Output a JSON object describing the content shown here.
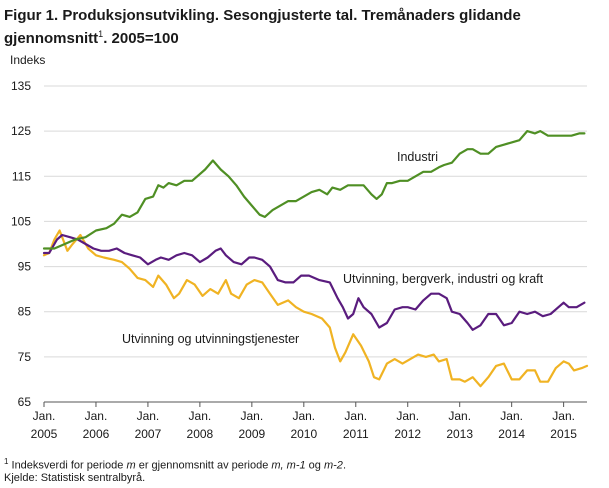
{
  "title": {
    "line1": "Figur 1. Produksjonsutvikling. Sesongjusterte tal. Tremånaders glidande",
    "line2_pre": "gjennomsnitt",
    "line2_sup": "1",
    "line2_post": ". 2005=100"
  },
  "footnotes": {
    "sup": "1",
    "note_pre": " Indeksverdi for periode ",
    "note_m1": "m",
    "note_mid": " er gjennomsnitt av periode ",
    "note_m2": "m, m-1",
    "note_og": " og ",
    "note_m3": "m-2",
    "note_end": ".",
    "source": "Kjelde: Statistisk sentralbyrå."
  },
  "chart_data": {
    "type": "line",
    "ylabel": "Indeks",
    "ylim": [
      65,
      135
    ],
    "yticks": [
      65,
      75,
      85,
      95,
      105,
      115,
      125,
      135
    ],
    "grid": true,
    "x_start_year": 2005,
    "x_end_year": 2015.45,
    "xticks": [
      {
        "month": "Jan.",
        "year": "2005"
      },
      {
        "month": "Jan.",
        "year": "2006"
      },
      {
        "month": "Jan.",
        "year": "2007"
      },
      {
        "month": "Jan.",
        "year": "2008"
      },
      {
        "month": "Jan.",
        "year": "2009"
      },
      {
        "month": "Jan.",
        "year": "2010"
      },
      {
        "month": "Jan.",
        "year": "2011"
      },
      {
        "month": "Jan.",
        "year": "2012"
      },
      {
        "month": "Jan.",
        "year": "2013"
      },
      {
        "month": "Jan.",
        "year": "2014"
      },
      {
        "month": "Jan.",
        "year": "2015"
      }
    ],
    "series": [
      {
        "name": "Industri",
        "color": "#4f8f24",
        "points": [
          [
            2005.0,
            99
          ],
          [
            2005.2,
            99
          ],
          [
            2005.4,
            100
          ],
          [
            2005.6,
            101
          ],
          [
            2005.8,
            101.5
          ],
          [
            2006.0,
            103
          ],
          [
            2006.2,
            103.5
          ],
          [
            2006.35,
            104.5
          ],
          [
            2006.5,
            106.5
          ],
          [
            2006.65,
            106
          ],
          [
            2006.8,
            107
          ],
          [
            2006.95,
            110
          ],
          [
            2007.1,
            110.5
          ],
          [
            2007.2,
            113
          ],
          [
            2007.3,
            112.5
          ],
          [
            2007.4,
            113.5
          ],
          [
            2007.55,
            113
          ],
          [
            2007.7,
            114
          ],
          [
            2007.85,
            114
          ],
          [
            2007.95,
            115
          ],
          [
            2008.1,
            116.5
          ],
          [
            2008.25,
            118.5
          ],
          [
            2008.4,
            116.5
          ],
          [
            2008.55,
            115
          ],
          [
            2008.7,
            113
          ],
          [
            2008.85,
            110.5
          ],
          [
            2009.0,
            108.5
          ],
          [
            2009.15,
            106.5
          ],
          [
            2009.25,
            106
          ],
          [
            2009.4,
            107.5
          ],
          [
            2009.55,
            108.5
          ],
          [
            2009.7,
            109.5
          ],
          [
            2009.85,
            109.5
          ],
          [
            2010.0,
            110.5
          ],
          [
            2010.15,
            111.5
          ],
          [
            2010.3,
            112
          ],
          [
            2010.45,
            111
          ],
          [
            2010.55,
            112.5
          ],
          [
            2010.7,
            112
          ],
          [
            2010.85,
            113
          ],
          [
            2011.0,
            113
          ],
          [
            2011.15,
            113
          ],
          [
            2011.3,
            111
          ],
          [
            2011.4,
            110
          ],
          [
            2011.5,
            111
          ],
          [
            2011.6,
            113.5
          ],
          [
            2011.7,
            113.5
          ],
          [
            2011.85,
            114
          ],
          [
            2012.0,
            114
          ],
          [
            2012.15,
            115
          ],
          [
            2012.3,
            116
          ],
          [
            2012.45,
            116
          ],
          [
            2012.6,
            117
          ],
          [
            2012.7,
            117.5
          ],
          [
            2012.85,
            118
          ],
          [
            2013.0,
            120
          ],
          [
            2013.15,
            121
          ],
          [
            2013.25,
            121
          ],
          [
            2013.4,
            120
          ],
          [
            2013.55,
            120
          ],
          [
            2013.7,
            121.5
          ],
          [
            2013.85,
            122
          ],
          [
            2014.0,
            122.5
          ],
          [
            2014.15,
            123
          ],
          [
            2014.3,
            125
          ],
          [
            2014.45,
            124.5
          ],
          [
            2014.55,
            125
          ],
          [
            2014.7,
            124
          ],
          [
            2014.85,
            124
          ],
          [
            2015.0,
            124
          ],
          [
            2015.15,
            124
          ],
          [
            2015.3,
            124.5
          ],
          [
            2015.4,
            124.5
          ]
        ]
      },
      {
        "name": "Utvinning, bergverk, industri og kraft",
        "color": "#5a1c7e",
        "points": [
          [
            2005.0,
            98
          ],
          [
            2005.1,
            98
          ],
          [
            2005.25,
            101
          ],
          [
            2005.35,
            102
          ],
          [
            2005.5,
            101.5
          ],
          [
            2005.65,
            101
          ],
          [
            2005.8,
            100
          ],
          [
            2005.95,
            99
          ],
          [
            2006.1,
            98.5
          ],
          [
            2006.25,
            98.5
          ],
          [
            2006.4,
            99
          ],
          [
            2006.55,
            98
          ],
          [
            2006.7,
            97.5
          ],
          [
            2006.85,
            97
          ],
          [
            2007.0,
            95.5
          ],
          [
            2007.15,
            96.5
          ],
          [
            2007.25,
            97
          ],
          [
            2007.4,
            96.5
          ],
          [
            2007.55,
            97.5
          ],
          [
            2007.7,
            98
          ],
          [
            2007.85,
            97.5
          ],
          [
            2008.0,
            96
          ],
          [
            2008.15,
            97
          ],
          [
            2008.3,
            98.5
          ],
          [
            2008.4,
            99
          ],
          [
            2008.5,
            97.5
          ],
          [
            2008.65,
            96
          ],
          [
            2008.8,
            95.5
          ],
          [
            2008.95,
            97
          ],
          [
            2009.05,
            97
          ],
          [
            2009.2,
            96.5
          ],
          [
            2009.35,
            95
          ],
          [
            2009.5,
            92
          ],
          [
            2009.65,
            91.5
          ],
          [
            2009.8,
            91.5
          ],
          [
            2009.95,
            93
          ],
          [
            2010.1,
            93
          ],
          [
            2010.3,
            92
          ],
          [
            2010.5,
            91.5
          ],
          [
            2010.65,
            88
          ],
          [
            2010.75,
            86
          ],
          [
            2010.85,
            83.5
          ],
          [
            2010.95,
            84.5
          ],
          [
            2011.05,
            88
          ],
          [
            2011.15,
            86
          ],
          [
            2011.3,
            84.5
          ],
          [
            2011.45,
            81.5
          ],
          [
            2011.6,
            82.5
          ],
          [
            2011.75,
            85.5
          ],
          [
            2011.9,
            86
          ],
          [
            2012.0,
            86
          ],
          [
            2012.15,
            85.5
          ],
          [
            2012.3,
            87.5
          ],
          [
            2012.45,
            89
          ],
          [
            2012.6,
            89
          ],
          [
            2012.75,
            88
          ],
          [
            2012.85,
            85
          ],
          [
            2013.0,
            84.5
          ],
          [
            2013.15,
            82.5
          ],
          [
            2013.25,
            81
          ],
          [
            2013.4,
            82
          ],
          [
            2013.55,
            84.5
          ],
          [
            2013.7,
            84.5
          ],
          [
            2013.85,
            82
          ],
          [
            2014.0,
            82.5
          ],
          [
            2014.15,
            85
          ],
          [
            2014.3,
            84.5
          ],
          [
            2014.45,
            85
          ],
          [
            2014.6,
            84
          ],
          [
            2014.75,
            84.5
          ],
          [
            2014.9,
            86
          ],
          [
            2015.0,
            87
          ],
          [
            2015.1,
            86
          ],
          [
            2015.25,
            86
          ],
          [
            2015.4,
            87
          ]
        ]
      },
      {
        "name": "Utvinning og utvinningstjenester",
        "color": "#f0b323",
        "points": [
          [
            2005.0,
            97.5
          ],
          [
            2005.1,
            98
          ],
          [
            2005.2,
            101
          ],
          [
            2005.3,
            103
          ],
          [
            2005.45,
            98.5
          ],
          [
            2005.55,
            100
          ],
          [
            2005.7,
            102
          ],
          [
            2005.85,
            99
          ],
          [
            2006.0,
            97.5
          ],
          [
            2006.15,
            97
          ],
          [
            2006.35,
            96.5
          ],
          [
            2006.5,
            96
          ],
          [
            2006.65,
            94.5
          ],
          [
            2006.8,
            92.5
          ],
          [
            2006.95,
            92
          ],
          [
            2007.1,
            90.5
          ],
          [
            2007.2,
            93
          ],
          [
            2007.35,
            91
          ],
          [
            2007.5,
            88
          ],
          [
            2007.6,
            89
          ],
          [
            2007.75,
            92
          ],
          [
            2007.9,
            91
          ],
          [
            2008.05,
            88.5
          ],
          [
            2008.2,
            90
          ],
          [
            2008.35,
            89
          ],
          [
            2008.5,
            92
          ],
          [
            2008.6,
            89
          ],
          [
            2008.75,
            88
          ],
          [
            2008.9,
            91
          ],
          [
            2009.05,
            92
          ],
          [
            2009.2,
            91.5
          ],
          [
            2009.35,
            89
          ],
          [
            2009.5,
            86.5
          ],
          [
            2009.7,
            87.5
          ],
          [
            2009.85,
            86
          ],
          [
            2010.0,
            85
          ],
          [
            2010.15,
            84.5
          ],
          [
            2010.35,
            83.5
          ],
          [
            2010.5,
            81.5
          ],
          [
            2010.6,
            77
          ],
          [
            2010.7,
            74
          ],
          [
            2010.8,
            76
          ],
          [
            2010.95,
            80
          ],
          [
            2011.1,
            77.5
          ],
          [
            2011.25,
            74
          ],
          [
            2011.35,
            70.5
          ],
          [
            2011.45,
            70
          ],
          [
            2011.6,
            73.5
          ],
          [
            2011.75,
            74.5
          ],
          [
            2011.9,
            73.5
          ],
          [
            2012.05,
            74.5
          ],
          [
            2012.2,
            75.5
          ],
          [
            2012.35,
            75
          ],
          [
            2012.5,
            75.5
          ],
          [
            2012.6,
            74
          ],
          [
            2012.75,
            74.5
          ],
          [
            2012.85,
            70
          ],
          [
            2013.0,
            70
          ],
          [
            2013.1,
            69.5
          ],
          [
            2013.25,
            70.5
          ],
          [
            2013.4,
            68.5
          ],
          [
            2013.55,
            70.5
          ],
          [
            2013.7,
            73
          ],
          [
            2013.85,
            73.5
          ],
          [
            2014.0,
            70
          ],
          [
            2014.15,
            70
          ],
          [
            2014.3,
            72
          ],
          [
            2014.45,
            72
          ],
          [
            2014.55,
            69.5
          ],
          [
            2014.7,
            69.5
          ],
          [
            2014.85,
            72.5
          ],
          [
            2015.0,
            74
          ],
          [
            2015.1,
            73.5
          ],
          [
            2015.2,
            72
          ],
          [
            2015.35,
            72.5
          ],
          [
            2015.45,
            73
          ]
        ]
      }
    ],
    "annotations": [
      {
        "text": "Industri",
        "series": 0
      },
      {
        "text": "Utvinning, bergverk, industri og kraft",
        "series": 1
      },
      {
        "text": "Utvinning og utvinningstjenester",
        "series": 2
      }
    ]
  }
}
